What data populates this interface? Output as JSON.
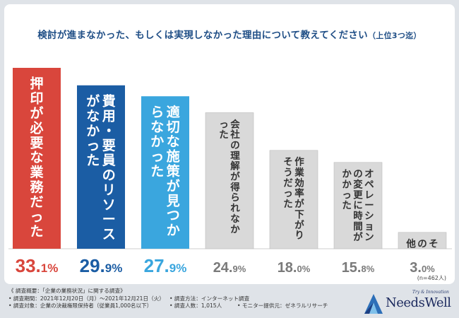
{
  "title": {
    "main": "検討が進まなかった、もしくは実現しなかった理由について教えてください",
    "sub": "（上位3つ迄）"
  },
  "chart_data": {
    "type": "bar",
    "categories": [
      "押印が必要な業務だった",
      "費用・要員のリソースがなかった",
      "適切な施策が見つからなかった",
      "会社の理解が得られなかった",
      "作業効率が下がりそうだった",
      "オペレーションの変更に時間がかかった",
      "その他"
    ],
    "values": [
      33.1,
      29.9,
      27.9,
      24.9,
      18.0,
      15.8,
      3.0
    ],
    "value_labels": [
      {
        "int": "33.",
        "dec": "1%"
      },
      {
        "int": "29.",
        "dec": "9%"
      },
      {
        "int": "27.",
        "dec": "9%"
      },
      {
        "int": "24.",
        "dec": "9%"
      },
      {
        "int": "18.",
        "dec": "0%"
      },
      {
        "int": "15.",
        "dec": "8%"
      },
      {
        "int": "3.",
        "dec": "0%"
      }
    ],
    "ylim": [
      0,
      33.1
    ],
    "sample_note": "(n=462人)",
    "colors": {
      "bar_fills": [
        "#d9463c",
        "#1b5da4",
        "#3aa6de",
        "#d9d9d9",
        "#d9d9d9",
        "#d9d9d9",
        "#d9d9d9"
      ],
      "bar_texts": [
        "#ffffff",
        "#ffffff",
        "#ffffff",
        "#333333",
        "#333333",
        "#333333",
        "#333333"
      ],
      "value_colors": [
        "#d9463c",
        "#1b5da4",
        "#3aa6de",
        "#7a7a7a",
        "#7a7a7a",
        "#7a7a7a",
        "#7a7a7a"
      ]
    }
  },
  "footer": {
    "heading": "《 調査概要：「企業の業務状況」に関する調査》",
    "period": "• 調査期間：2021年12月20日（月）〜2021年12月21日（火）",
    "method": "• 調査方法：インターネット調査",
    "target": "• 調査対象：企業の決裁権限保持者（従業員1,000名以下）",
    "count": "• 調査人数：1,015人",
    "monitor": "• モニター提供元：ゼネラルリサーチ"
  },
  "logo": {
    "tagline": "Try & Innovation",
    "brand": "NeedsWell",
    "icon": "needswell-logo-icon"
  }
}
